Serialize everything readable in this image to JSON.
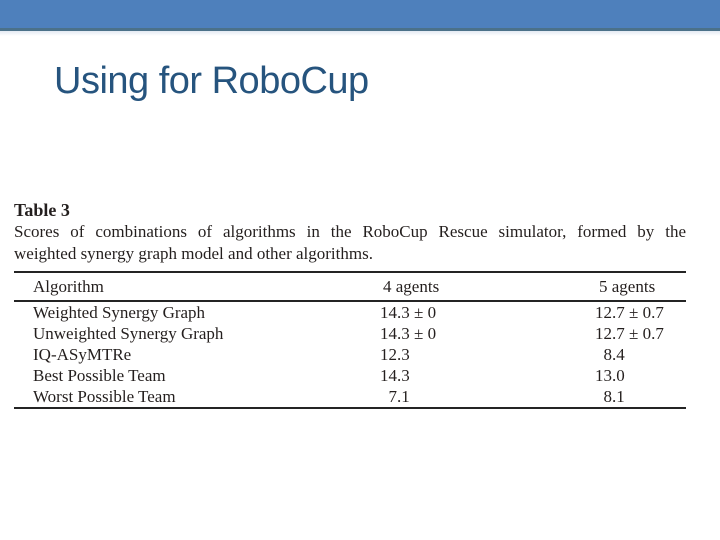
{
  "colors": {
    "accent_bar": "#4e80bc",
    "accent_bar_edge": "#4b7189",
    "title_text": "#26547e",
    "body_text": "#241f1e",
    "table_rule": "#242424"
  },
  "slide": {
    "title": "Using for RoboCup"
  },
  "paper": {
    "caption_title": "Table 3",
    "caption_line1": "Scores of combinations of algorithms in the RoboCup Rescue simulator, formed by the",
    "caption_line2": "weighted synergy graph model and other algorithms.",
    "table": {
      "headers": [
        "Algorithm",
        "4 agents",
        "5 agents"
      ],
      "rows": [
        {
          "algorithm": "Weighted Synergy Graph",
          "a4_int": "14",
          "a4_rest": ".3 ± 0",
          "a5_int": "12",
          "a5_rest": ".7 ± 0.7"
        },
        {
          "algorithm": "Unweighted Synergy Graph",
          "a4_int": "14",
          "a4_rest": ".3 ± 0",
          "a5_int": "12",
          "a5_rest": ".7 ± 0.7"
        },
        {
          "algorithm": "IQ-ASyMTRe",
          "a4_int": "12",
          "a4_rest": ".3",
          "a5_int": "8",
          "a5_rest": ".4"
        },
        {
          "algorithm": "Best Possible Team",
          "a4_int": "14",
          "a4_rest": ".3",
          "a5_int": "13",
          "a5_rest": ".0"
        },
        {
          "algorithm": "Worst Possible Team",
          "a4_int": "7",
          "a4_rest": ".1",
          "a5_int": "8",
          "a5_rest": ".1"
        }
      ]
    }
  },
  "chart_data": {
    "type": "table",
    "title": "Table 3",
    "caption": "Scores of combinations of algorithms in the RoboCup Rescue simulator, formed by the weighted synergy graph model and other algorithms.",
    "columns": [
      "Algorithm",
      "4 agents",
      "5 agents"
    ],
    "rows": [
      [
        "Weighted Synergy Graph",
        "14.3 ± 0",
        "12.7 ± 0.7"
      ],
      [
        "Unweighted Synergy Graph",
        "14.3 ± 0",
        "12.7 ± 0.7"
      ],
      [
        "IQ-ASyMTRe",
        "12.3",
        "8.4"
      ],
      [
        "Best Possible Team",
        "14.3",
        "13.0"
      ],
      [
        "Worst Possible Team",
        "7.1",
        "8.1"
      ]
    ]
  }
}
